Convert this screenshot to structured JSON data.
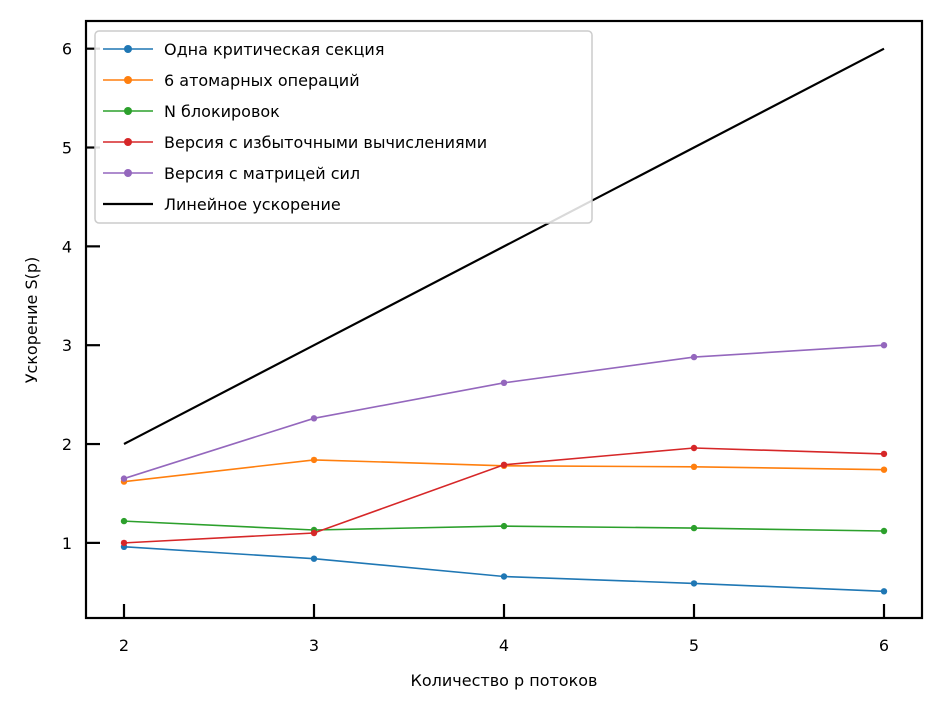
{
  "chart_data": {
    "type": "line",
    "title": "",
    "xlabel": "Количество p потоков",
    "ylabel": "Ускорение S(p)",
    "x": [
      2,
      3,
      4,
      5,
      6
    ],
    "xticks": [
      "2",
      "3",
      "4",
      "5",
      "6"
    ],
    "yticks": [
      "1",
      "2",
      "3",
      "4",
      "5",
      "6"
    ],
    "xlim": [
      1.8,
      6.2
    ],
    "ylim": [
      0.24,
      6.28
    ],
    "grid": false,
    "legend_position": "top-left",
    "series": [
      {
        "name": "Одна критическая секция",
        "values": [
          0.96,
          0.84,
          0.66,
          0.59,
          0.51
        ],
        "color": "#1f77b4",
        "marker": "circle"
      },
      {
        "name": "6 атомарных операций",
        "values": [
          1.62,
          1.84,
          1.78,
          1.77,
          1.74
        ],
        "color": "#ff7f0e",
        "marker": "circle"
      },
      {
        "name": "N блокировок",
        "values": [
          1.22,
          1.13,
          1.17,
          1.15,
          1.12
        ],
        "color": "#2ca02c",
        "marker": "circle"
      },
      {
        "name": "Версия с избыточными вычислениями",
        "values": [
          1.0,
          1.1,
          1.79,
          1.96,
          1.9
        ],
        "color": "#d62728",
        "marker": "circle"
      },
      {
        "name": "Версия с матрицей сил",
        "values": [
          1.65,
          2.26,
          2.62,
          2.88,
          3.0
        ],
        "color": "#9467bd",
        "marker": "circle"
      },
      {
        "name": "Линейное ускорение",
        "values": [
          2,
          3,
          4,
          5,
          6
        ],
        "color": "#000000",
        "marker": "none"
      }
    ]
  }
}
